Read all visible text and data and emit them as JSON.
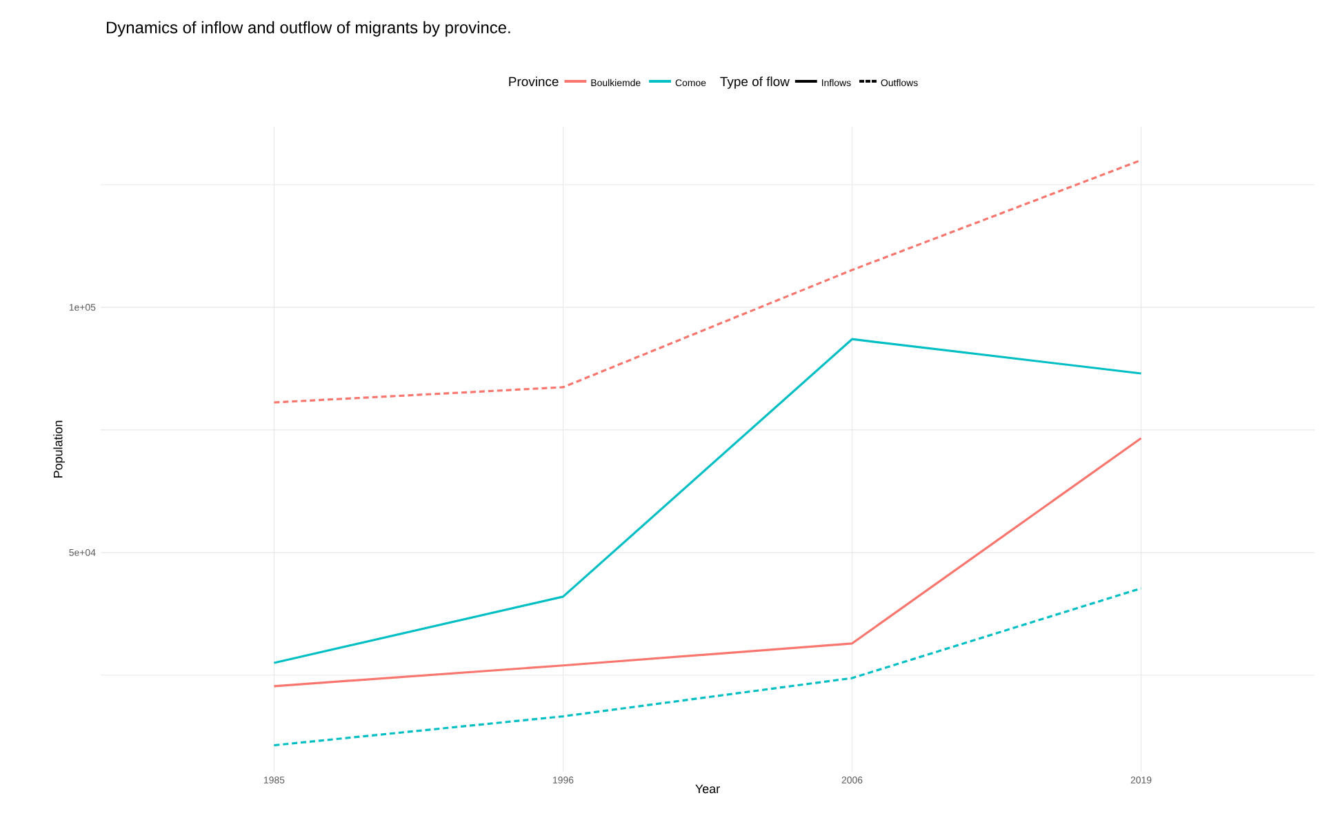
{
  "chart_data": {
    "type": "line",
    "title": "Dynamics of inflow and outflow of migrants by province.",
    "xlabel": "Year",
    "ylabel": "Population",
    "categories": [
      "1985",
      "1996",
      "2006",
      "2019"
    ],
    "series": [
      {
        "name": "Boulkiemde",
        "color": "#f8766d",
        "values": [
          22750,
          26970,
          31460,
          73300
        ],
        "line_style": "solid"
      },
      {
        "name": "Comoe",
        "color": "#00bfc4",
        "values": [
          27500,
          41000,
          93500,
          86500
        ],
        "line_style": "solid"
      },
      {
        "color": "#f8766d",
        "values": [
          80600,
          83700,
          107600,
          130000
        ],
        "line_style": "dashed"
      },
      {
        "color": "#00bfc4",
        "values": [
          10700,
          16600,
          24400,
          42700
        ],
        "line_style": "dashed"
      }
    ],
    "ylim": [
      5300,
      136800
    ],
    "yticks": [
      {
        "value": 25000,
        "label": null
      },
      {
        "value": 50000,
        "label": "5e+04"
      },
      {
        "value": 75000,
        "label": null
      },
      {
        "value": 100000,
        "label": "1e+05"
      },
      {
        "value": 125000,
        "label": null
      }
    ],
    "grid": true,
    "legend": "top",
    "legend_title": [
      "Province",
      "Type of flow"
    ],
    "annotations": [
      "Inflows",
      "Outflows"
    ]
  }
}
